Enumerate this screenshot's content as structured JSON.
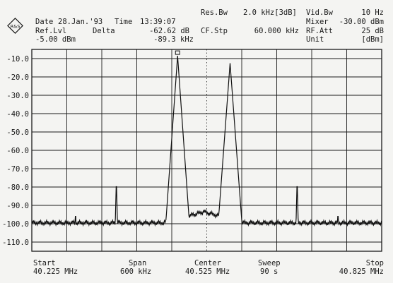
{
  "header": {
    "date_label": "Date",
    "date_value": "28.Jan.'93",
    "time_label": "Time",
    "time_value": "13:39:07",
    "ref_lvl_label": "Ref.Lvl",
    "ref_lvl_value": "-5.00 dBm",
    "delta_label": "Delta",
    "delta_db": "-62.62 dB",
    "delta_khz": "-89.3 kHz",
    "res_bw_label": "Res.Bw",
    "res_bw_value": "2.0 kHz[3dB]",
    "cf_stp_label": "CF.Stp",
    "cf_stp_value": "60.000 kHz",
    "vid_bw_label": "Vid.Bw",
    "vid_bw_value": "10 Hz",
    "mixer_label": "Mixer",
    "mixer_value": "-30.00 dBm",
    "rf_att_label": "RF.Att",
    "rf_att_value": "25 dB",
    "unit_label": "Unit",
    "unit_value": "[dBm]"
  },
  "footer": {
    "start_label": "Start",
    "start_value": "40.225 MHz",
    "span_label": "Span",
    "span_value": "600 kHz",
    "center_label": "Center",
    "center_value": "40.525 MHz",
    "sweep_label": "Sweep",
    "sweep_value": "90 s",
    "stop_label": "Stop",
    "stop_value": "40.825 MHz"
  },
  "logo_text": "R&S",
  "chart_data": {
    "type": "line",
    "title": "",
    "xlabel": "",
    "ylabel": "",
    "x_unit": "MHz",
    "y_unit": "dBm",
    "xlim": [
      40.225,
      40.825
    ],
    "ylim": [
      -115,
      -5
    ],
    "yticks": [
      "-10.0",
      "-20.0",
      "-30.0",
      "-40.0",
      "-50.0",
      "-60.0",
      "-70.0",
      "-80.0",
      "-90.0",
      "-100.0",
      "-110.0"
    ],
    "ytick_values": [
      -10,
      -20,
      -30,
      -40,
      -50,
      -60,
      -70,
      -80,
      -90,
      -100,
      -110
    ],
    "noise_floor": -99.5,
    "peaks": [
      {
        "x": 40.3,
        "level": -91.0,
        "width": 0.0012
      },
      {
        "x": 40.37,
        "level": -75.5,
        "width": 0.0014
      },
      {
        "x": 40.475,
        "level": -8.5,
        "width": 0.004
      },
      {
        "x": 40.565,
        "level": -12.5,
        "width": 0.0042
      },
      {
        "x": 40.68,
        "level": -75.5,
        "width": 0.0014
      },
      {
        "x": 40.75,
        "level": -91.0,
        "width": 0.0012
      }
    ],
    "marker": {
      "x": 40.475,
      "y": -8.5
    },
    "grid": true,
    "center_dotted_line": true
  }
}
